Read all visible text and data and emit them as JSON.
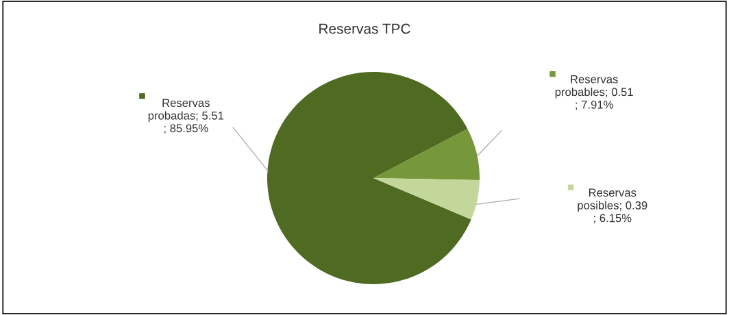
{
  "chart_data": {
    "type": "pie",
    "title": "Reservas TPC",
    "categories": [
      "Reservas probadas",
      "Reservas probables",
      "Reservas posibles"
    ],
    "values": [
      5.51,
      0.51,
      0.39
    ],
    "colors": [
      "#4f6b22",
      "#76983a",
      "#c4d79b"
    ],
    "value_labels": [
      "; 5.51 ; 85.95%",
      "; 0.51 ; 7.91%",
      "; 0.39 ; 6.15%"
    ],
    "legend": "right"
  }
}
